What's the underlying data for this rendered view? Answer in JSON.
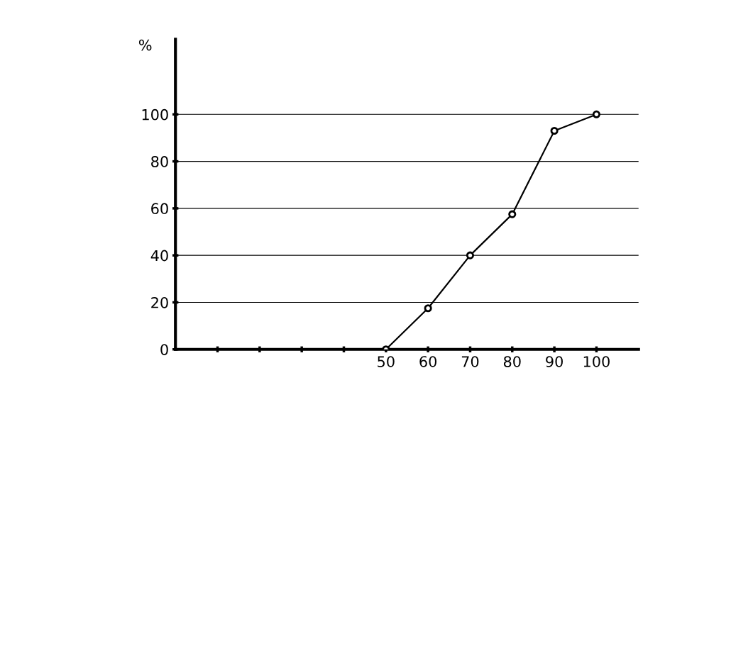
{
  "chart_data": {
    "type": "line",
    "ylabel": "%",
    "x": [
      50,
      60,
      70,
      80,
      90,
      100
    ],
    "series": [
      {
        "color": "#000000",
        "values": [
          0,
          17.5,
          40,
          57.5,
          93,
          100
        ]
      }
    ],
    "xlim": [
      0,
      110
    ],
    "xticks": [
      {
        "value": 10,
        "label": null
      },
      {
        "value": 20,
        "label": null
      },
      {
        "value": 30,
        "label": null
      },
      {
        "value": 40,
        "label": null
      },
      50,
      60,
      70,
      80,
      90,
      100
    ],
    "ylim": [
      0,
      132
    ],
    "yticks": [
      {
        "value": 0,
        "label": "0"
      },
      20,
      40,
      60,
      80,
      100
    ],
    "grid": "y",
    "marker": "circle",
    "line_style": "solid"
  }
}
